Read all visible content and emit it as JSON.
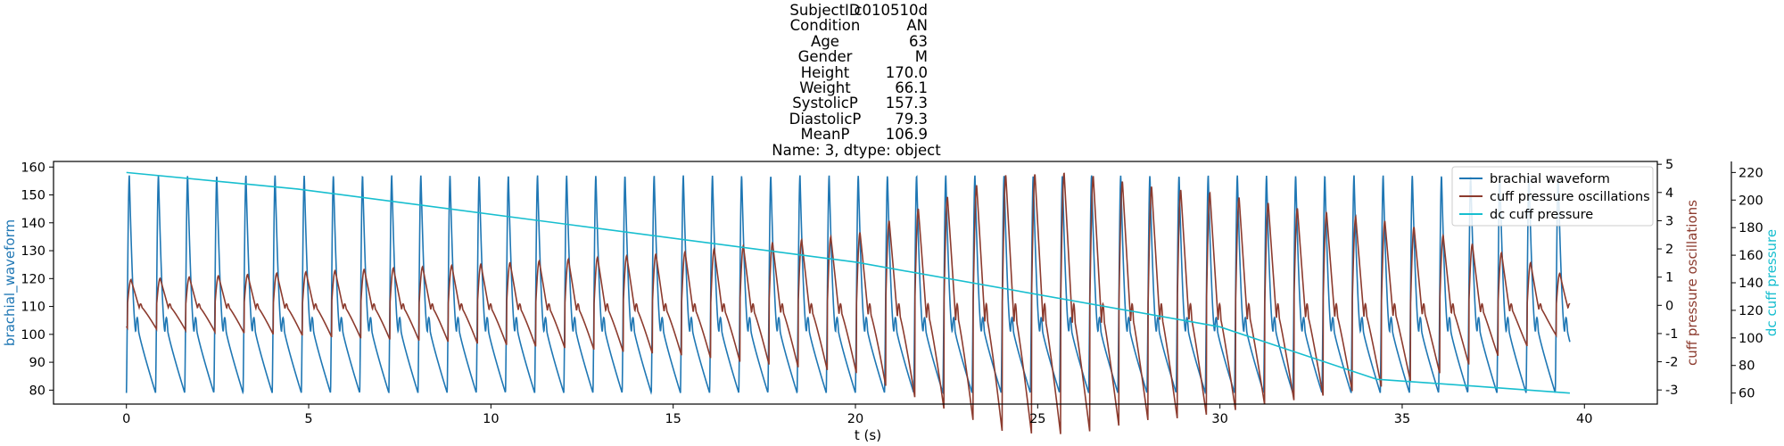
{
  "title": {
    "rows": [
      {
        "key": "SubjectID",
        "value": "c010510d"
      },
      {
        "key": "Condition",
        "value": "AN"
      },
      {
        "key": "Age",
        "value": "63"
      },
      {
        "key": "Gender",
        "value": "M"
      },
      {
        "key": "Height",
        "value": "170.0"
      },
      {
        "key": "Weight",
        "value": "66.1"
      },
      {
        "key": "SystolicP",
        "value": "157.3"
      },
      {
        "key": "DiastolicP",
        "value": "79.3"
      },
      {
        "key": "MeanP",
        "value": "106.9"
      }
    ],
    "footer": "Name: 3, dtype: object"
  },
  "chart_data": {
    "type": "line",
    "xlabel": "t (s)",
    "xlim": [
      -2,
      42
    ],
    "x_ticks": [
      0,
      5,
      10,
      15,
      20,
      25,
      30,
      35,
      40
    ],
    "axes": {
      "left": {
        "label": "brachial_waveform",
        "color": "#1f77b4",
        "ylim": [
          75,
          162
        ],
        "ticks": [
          80,
          90,
          100,
          110,
          120,
          130,
          140,
          150,
          160
        ]
      },
      "right1": {
        "label": "cuff pressure oscillations",
        "color": "#8c3b2e",
        "ylim": [
          -3.5,
          5.1
        ],
        "ticks": [
          -3,
          -2,
          -1,
          0,
          1,
          2,
          3,
          4,
          5
        ]
      },
      "right2": {
        "label": "dc cuff pressure",
        "color": "#17becf",
        "ylim": [
          52,
          228
        ],
        "ticks": [
          60,
          80,
          100,
          120,
          140,
          160,
          180,
          200,
          220
        ]
      }
    },
    "series": [
      {
        "name": "brachial waveform",
        "color": "#1f77b4",
        "axis": "left",
        "description_values": {
          "t_start": 0,
          "t_end": 39.6,
          "beat_period_s": 0.8,
          "peak": 157,
          "trough": 79
        }
      },
      {
        "name": "cuff pressure oscillations",
        "color": "#8c3b2e",
        "axis": "right1",
        "envelope": {
          "t": [
            0,
            5,
            10,
            15,
            20,
            24,
            26,
            28,
            30,
            32,
            35,
            38,
            39.6
          ],
          "amp": [
            0.9,
            1.2,
            1.5,
            1.9,
            2.6,
            4.8,
            4.9,
            4.4,
            4.1,
            3.6,
            3.0,
            1.8,
            1.0
          ]
        }
      },
      {
        "name": "dc cuff pressure",
        "color": "#17becf",
        "axis": "right2",
        "x": [
          0,
          4.7,
          20,
          30,
          34.3,
          37,
          39.6
        ],
        "y": [
          220,
          208,
          155,
          108,
          70,
          65,
          60
        ]
      }
    ],
    "legend": {
      "position": "top-right",
      "entries": [
        "brachial waveform",
        "cuff pressure oscillations",
        "dc cuff pressure"
      ]
    }
  }
}
